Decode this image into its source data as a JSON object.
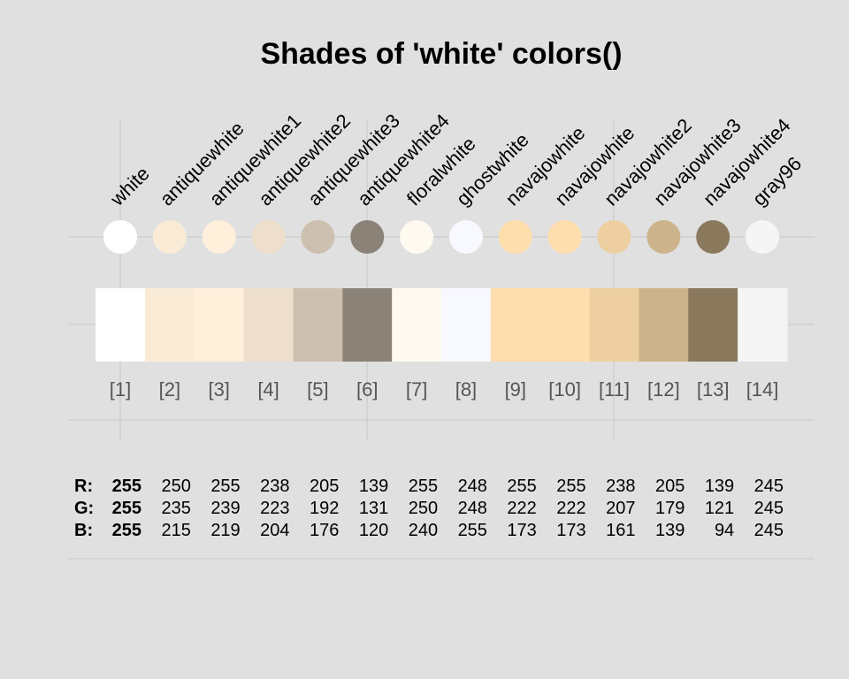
{
  "chart_data": {
    "type": "table",
    "title": "Shades of 'white' colors()",
    "row_labels": [
      "R:",
      "G:",
      "B:"
    ],
    "colors": [
      {
        "index": "[1]",
        "name": "white",
        "hex": "#FFFFFF",
        "r": 255,
        "g": 255,
        "b": 255
      },
      {
        "index": "[2]",
        "name": "antiquewhite",
        "hex": "#FAEBD7",
        "r": 250,
        "g": 235,
        "b": 215
      },
      {
        "index": "[3]",
        "name": "antiquewhite1",
        "hex": "#FFEFDB",
        "r": 255,
        "g": 239,
        "b": 219
      },
      {
        "index": "[4]",
        "name": "antiquewhite2",
        "hex": "#EEDFCC",
        "r": 238,
        "g": 223,
        "b": 204
      },
      {
        "index": "[5]",
        "name": "antiquewhite3",
        "hex": "#CDC0B0",
        "r": 205,
        "g": 192,
        "b": 176
      },
      {
        "index": "[6]",
        "name": "antiquewhite4",
        "hex": "#8B8378",
        "r": 139,
        "g": 131,
        "b": 120
      },
      {
        "index": "[7]",
        "name": "floralwhite",
        "hex": "#FFFAF0",
        "r": 255,
        "g": 250,
        "b": 240
      },
      {
        "index": "[8]",
        "name": "ghostwhite",
        "hex": "#F8F8FF",
        "r": 248,
        "g": 248,
        "b": 255
      },
      {
        "index": "[9]",
        "name": "navajowhite",
        "hex": "#FFDEAD",
        "r": 255,
        "g": 222,
        "b": 173
      },
      {
        "index": "[10]",
        "name": "navajowhite",
        "hex": "#FFDEAD",
        "r": 255,
        "g": 222,
        "b": 173
      },
      {
        "index": "[11]",
        "name": "navajowhite2",
        "hex": "#EECFA1",
        "r": 238,
        "g": 207,
        "b": 161
      },
      {
        "index": "[12]",
        "name": "navajowhite3",
        "hex": "#CDB38B",
        "r": 205,
        "g": 179,
        "b": 139
      },
      {
        "index": "[13]",
        "name": "navajowhite4",
        "hex": "#8B795E",
        "r": 139,
        "g": 121,
        "b": 94
      },
      {
        "index": "[14]",
        "name": "gray96",
        "hex": "#F5F5F5",
        "r": 245,
        "g": 245,
        "b": 245
      }
    ]
  }
}
